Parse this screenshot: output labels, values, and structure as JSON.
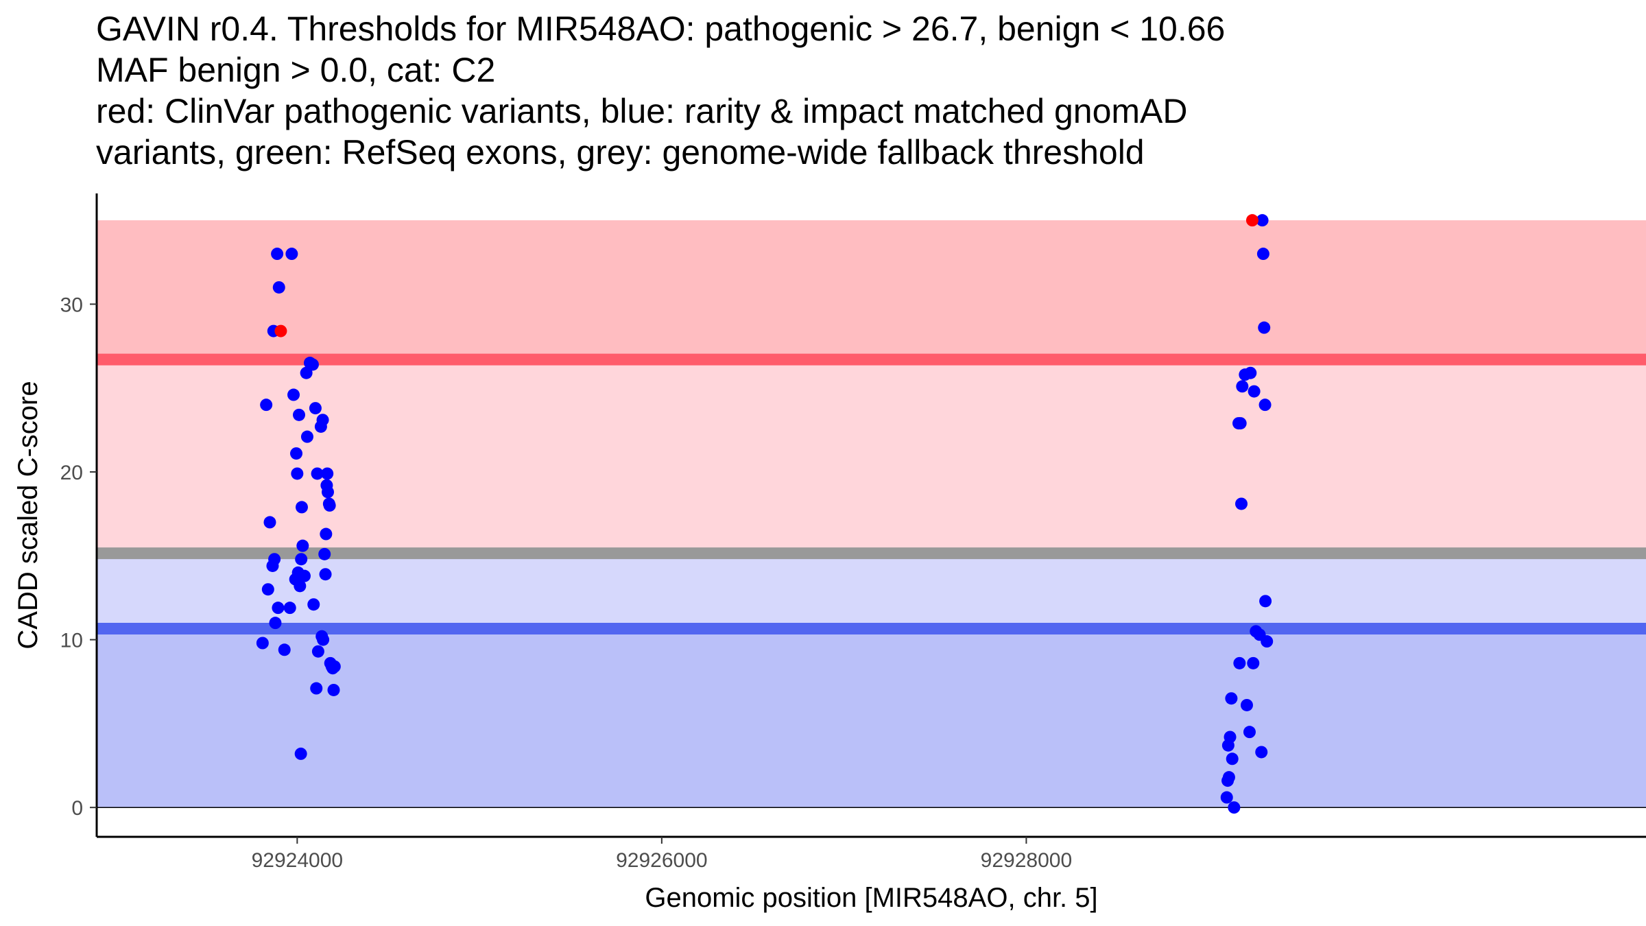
{
  "title": {
    "lines": [
      "GAVIN r0.4. Thresholds for MIR548AO: pathogenic > 26.7, benign < 10.66",
      "MAF benign > 0.0, cat: C2",
      "red: ClinVar pathogenic variants, blue: rarity & impact matched gnomAD",
      "variants, green: RefSeq exons, grey: genome-wide fallback threshold"
    ]
  },
  "chart_data": {
    "type": "scatter",
    "xlabel": "Genomic position [MIR548AO, chr. 5]",
    "ylabel": "CADD scaled C-score",
    "xlim": [
      92922900,
      92931400
    ],
    "ylim": [
      -1.75,
      36.6
    ],
    "x_ticks": [
      92924000,
      92926000,
      92928000
    ],
    "x_tick_labels": [
      "92924000",
      "92926000",
      "92928000"
    ],
    "y_ticks": [
      0,
      10,
      20,
      30
    ],
    "y_tick_labels": [
      "0",
      "10",
      "20",
      "30"
    ],
    "grid": false,
    "legend": "none",
    "colors": {
      "pathogenic_zone": "#ffbdc1",
      "vus_upper_zone": "#ffd6db",
      "vus_lower_zone": "#d6d8fc",
      "benign_zone": "#bac0f9",
      "pathogenic_threshold": "#ff5c6b",
      "benign_threshold": "#5266f0",
      "fallback_threshold": "#999999",
      "clinvar_points": "#ff0000",
      "gnomad_points": "#0000ff"
    },
    "bands": [
      {
        "name": "pathogenic zone",
        "y0": 26.7,
        "y1": 35,
        "color": "#ffbdc1"
      },
      {
        "name": "intermediate zone above fallback",
        "y0": 15.15,
        "y1": 26.7,
        "color": "#ffd6db"
      },
      {
        "name": "intermediate zone below fallback",
        "y0": 10.66,
        "y1": 15.15,
        "color": "#d6d8fc"
      },
      {
        "name": "benign zone",
        "y0": 0,
        "y1": 10.66,
        "color": "#bac0f9"
      }
    ],
    "threshold_lines": [
      {
        "name": "pathogenic threshold",
        "y": 26.7,
        "color": "#ff5c6b"
      },
      {
        "name": "fallback threshold",
        "y": 15.15,
        "color": "#999999"
      },
      {
        "name": "benign threshold",
        "y": 10.66,
        "color": "#5266f0"
      }
    ],
    "series": [
      {
        "name": "ClinVar pathogenic variants",
        "color": "#ff0000",
        "points": [
          {
            "x": 92923910,
            "y": 28.4
          },
          {
            "x": 92929240,
            "y": 35.0
          }
        ]
      },
      {
        "name": "gnomAD variants",
        "color": "#0000ff",
        "points": [
          {
            "x": 92923810,
            "y": 9.8
          },
          {
            "x": 92923830,
            "y": 24.0
          },
          {
            "x": 92923840,
            "y": 13.0
          },
          {
            "x": 92923850,
            "y": 17.0
          },
          {
            "x": 92923865,
            "y": 14.4
          },
          {
            "x": 92923870,
            "y": 28.4
          },
          {
            "x": 92923875,
            "y": 14.8
          },
          {
            "x": 92923880,
            "y": 11.0
          },
          {
            "x": 92923890,
            "y": 33.0
          },
          {
            "x": 92923895,
            "y": 11.9
          },
          {
            "x": 92923900,
            "y": 31.0
          },
          {
            "x": 92923930,
            "y": 9.4
          },
          {
            "x": 92923960,
            "y": 11.9
          },
          {
            "x": 92923970,
            "y": 33.0
          },
          {
            "x": 92923980,
            "y": 24.6
          },
          {
            "x": 92923990,
            "y": 13.6
          },
          {
            "x": 92923995,
            "y": 21.1
          },
          {
            "x": 92924000,
            "y": 19.9
          },
          {
            "x": 92924005,
            "y": 14.0
          },
          {
            "x": 92924010,
            "y": 23.4
          },
          {
            "x": 92924015,
            "y": 13.2
          },
          {
            "x": 92924020,
            "y": 3.2
          },
          {
            "x": 92924022,
            "y": 14.8
          },
          {
            "x": 92924025,
            "y": 17.9
          },
          {
            "x": 92924030,
            "y": 15.6
          },
          {
            "x": 92924040,
            "y": 13.8
          },
          {
            "x": 92924050,
            "y": 25.9
          },
          {
            "x": 92924055,
            "y": 22.1
          },
          {
            "x": 92924070,
            "y": 26.5
          },
          {
            "x": 92924085,
            "y": 26.4
          },
          {
            "x": 92924090,
            "y": 12.1
          },
          {
            "x": 92924100,
            "y": 23.8
          },
          {
            "x": 92924105,
            "y": 7.1
          },
          {
            "x": 92924110,
            "y": 19.9
          },
          {
            "x": 92924115,
            "y": 9.3
          },
          {
            "x": 92924130,
            "y": 22.7
          },
          {
            "x": 92924135,
            "y": 10.2
          },
          {
            "x": 92924140,
            "y": 23.1
          },
          {
            "x": 92924142,
            "y": 10.0
          },
          {
            "x": 92924150,
            "y": 15.1
          },
          {
            "x": 92924155,
            "y": 13.9
          },
          {
            "x": 92924158,
            "y": 16.3
          },
          {
            "x": 92924162,
            "y": 19.2
          },
          {
            "x": 92924165,
            "y": 19.9
          },
          {
            "x": 92924168,
            "y": 18.8
          },
          {
            "x": 92924175,
            "y": 18.1
          },
          {
            "x": 92924178,
            "y": 18.0
          },
          {
            "x": 92924182,
            "y": 8.6
          },
          {
            "x": 92924190,
            "y": 8.4
          },
          {
            "x": 92924195,
            "y": 8.3
          },
          {
            "x": 92924200,
            "y": 7.0
          },
          {
            "x": 92924205,
            "y": 8.4
          },
          {
            "x": 92929100,
            "y": 0.6
          },
          {
            "x": 92929105,
            "y": 1.6
          },
          {
            "x": 92929108,
            "y": 3.7
          },
          {
            "x": 92929112,
            "y": 1.8
          },
          {
            "x": 92929118,
            "y": 4.2
          },
          {
            "x": 92929125,
            "y": 6.5
          },
          {
            "x": 92929130,
            "y": 2.9
          },
          {
            "x": 92929140,
            "y": 0.0
          },
          {
            "x": 92929165,
            "y": 22.9
          },
          {
            "x": 92929170,
            "y": 8.6
          },
          {
            "x": 92929175,
            "y": 22.9
          },
          {
            "x": 92929180,
            "y": 18.1
          },
          {
            "x": 92929185,
            "y": 25.1
          },
          {
            "x": 92929200,
            "y": 25.8
          },
          {
            "x": 92929210,
            "y": 6.1
          },
          {
            "x": 92929225,
            "y": 4.5
          },
          {
            "x": 92929230,
            "y": 25.9
          },
          {
            "x": 92929245,
            "y": 8.6
          },
          {
            "x": 92929250,
            "y": 24.8
          },
          {
            "x": 92929260,
            "y": 10.5
          },
          {
            "x": 92929280,
            "y": 10.3
          },
          {
            "x": 92929290,
            "y": 3.3
          },
          {
            "x": 92929295,
            "y": 35.0
          },
          {
            "x": 92929300,
            "y": 33.0
          },
          {
            "x": 92929305,
            "y": 28.6
          },
          {
            "x": 92929310,
            "y": 24.0
          },
          {
            "x": 92929312,
            "y": 12.3
          },
          {
            "x": 92929320,
            "y": 9.9
          }
        ]
      }
    ]
  }
}
